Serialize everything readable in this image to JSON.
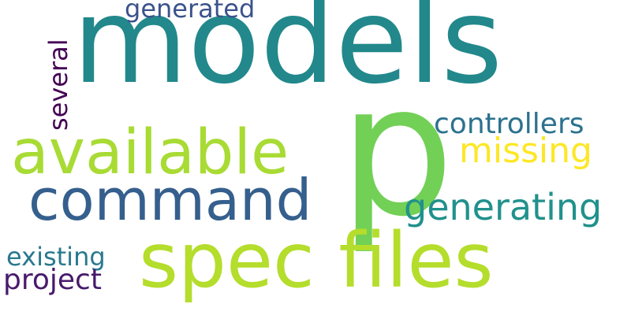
{
  "word_cloud": {
    "background": "#ffffff",
    "words": [
      {
        "id": "models",
        "text": "models",
        "color": "#22888b"
      },
      {
        "id": "p",
        "text": "p",
        "color": "#72d056"
      },
      {
        "id": "spec-files",
        "text": "spec files",
        "color": "#b4dd2c"
      },
      {
        "id": "available",
        "text": "available",
        "color": "#a8db34"
      },
      {
        "id": "command",
        "text": "command",
        "color": "#355f8d"
      },
      {
        "id": "generating",
        "text": "generating",
        "color": "#21918c"
      },
      {
        "id": "controllers",
        "text": "controllers",
        "color": "#2c728e"
      },
      {
        "id": "missing",
        "text": "missing",
        "color": "#fde725"
      },
      {
        "id": "generated",
        "text": "generated",
        "color": "#3b528b"
      },
      {
        "id": "several",
        "text": "several",
        "color": "#440154"
      },
      {
        "id": "existing",
        "text": "existing",
        "color": "#2a788e"
      },
      {
        "id": "project",
        "text": "project",
        "color": "#481a6c"
      }
    ]
  }
}
